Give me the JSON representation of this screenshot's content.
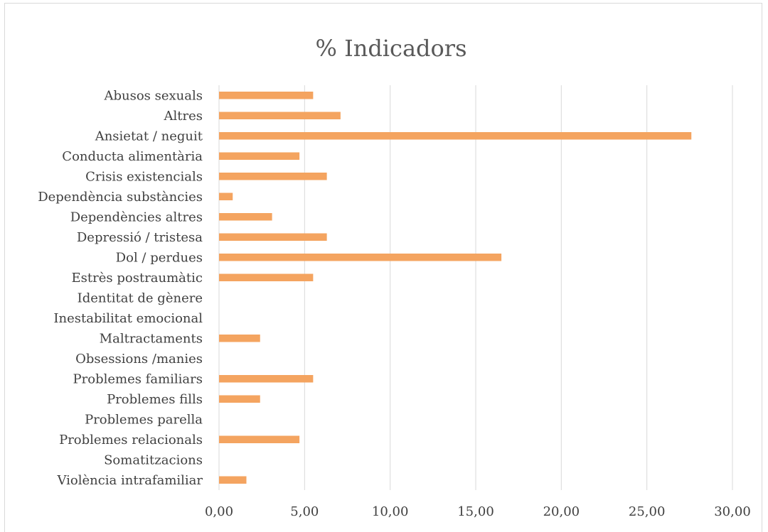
{
  "chart_data": {
    "type": "bar",
    "orientation": "horizontal",
    "title": "% Indicadors",
    "categories": [
      "Abusos sexuals",
      "Altres",
      "Ansietat / neguit",
      "Conducta alimentària",
      "Crisis existencials",
      "Dependència substàncies",
      "Dependències altres",
      "Depressió / tristesa",
      "Dol / perdues",
      "Estrès postraumàtic",
      "Identitat de gènere",
      "Inestabilitat emocional",
      "Maltractaments",
      "Obsessions /manies",
      "Problemes familiars",
      "Problemes fills",
      "Problemes parella",
      "Problemes relacionals",
      "Somatitzacions",
      "Violència intrafamiliar"
    ],
    "values": [
      5.5,
      7.1,
      27.6,
      4.7,
      6.3,
      0.8,
      3.1,
      6.3,
      16.5,
      5.5,
      0,
      0,
      2.4,
      0,
      5.5,
      2.4,
      0,
      4.7,
      0,
      1.6
    ],
    "xlim": [
      0,
      30
    ],
    "xticks": [
      "0,00",
      "5,00",
      "10,00",
      "15,00",
      "20,00",
      "25,00",
      "30,00"
    ],
    "grid": true,
    "bar_color": "#f4a460"
  }
}
